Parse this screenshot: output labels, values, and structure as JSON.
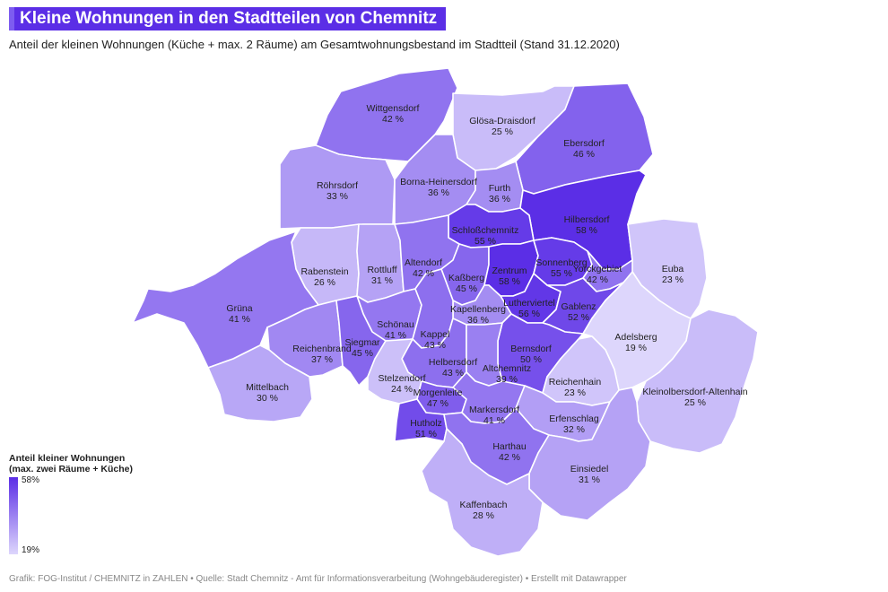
{
  "header": {
    "title": "Kleine Wohnungen in den Stadtteilen von Chemnitz",
    "subtitle": "Anteil der kleinen Wohnungen (Küche + max. 2 Räume) am Gesamtwohnungsbestand im Stadtteil (Stand 31.12.2020)"
  },
  "legend": {
    "title_line1": "Anteil kleiner Wohnungen",
    "title_line2": "(max. zwei Räume + Küche)",
    "max_label": "58%",
    "min_label": "19%",
    "max_value": 58,
    "min_value": 19,
    "color_max": "#5b2ee6",
    "color_min": "#ddd6fc"
  },
  "footer": "Grafik: FOG-Institut / CHEMNITZ in ZAHLEN • Quelle: Stadt Chemnitz - Amt für Informationsverarbeitung (Wohngebäuderegister) • Erstellt mit Datawrapper",
  "districts": [
    {
      "name": "Wittgensdorf",
      "value": 42,
      "value_label": "42 %"
    },
    {
      "name": "Glösa-Draisdorf",
      "value": 25,
      "value_label": "25 %"
    },
    {
      "name": "Ebersdorf",
      "value": 46,
      "value_label": "46 %"
    },
    {
      "name": "Röhrsdorf",
      "value": 33,
      "value_label": "33 %"
    },
    {
      "name": "Borna-Heinersdorf",
      "value": 36,
      "value_label": "36 %"
    },
    {
      "name": "Furth",
      "value": 36,
      "value_label": "36 %"
    },
    {
      "name": "Hilbersdorf",
      "value": 58,
      "value_label": "58 %"
    },
    {
      "name": "Schloßchemnitz",
      "value": 55,
      "value_label": "55 %"
    },
    {
      "name": "Rabenstein",
      "value": 26,
      "value_label": "26 %"
    },
    {
      "name": "Rottluff",
      "value": 31,
      "value_label": "31 %"
    },
    {
      "name": "Altendorf",
      "value": 42,
      "value_label": "42 %"
    },
    {
      "name": "Kaßberg",
      "value": 45,
      "value_label": "45 %"
    },
    {
      "name": "Zentrum",
      "value": 58,
      "value_label": "58 %"
    },
    {
      "name": "Sonnenberg",
      "value": 55,
      "value_label": "55 %"
    },
    {
      "name": "Yorckgebiet",
      "value": 42,
      "value_label": "42 %"
    },
    {
      "name": "Euba",
      "value": 23,
      "value_label": "23 %"
    },
    {
      "name": "Grüna",
      "value": 41,
      "value_label": "41 %"
    },
    {
      "name": "Lutherviertel",
      "value": 56,
      "value_label": "56 %"
    },
    {
      "name": "Gablenz",
      "value": 52,
      "value_label": "52 %"
    },
    {
      "name": "Kapellenberg",
      "value": 36,
      "value_label": "36 %"
    },
    {
      "name": "Schönau",
      "value": 41,
      "value_label": "41 %"
    },
    {
      "name": "Adelsberg",
      "value": 19,
      "value_label": "19 %"
    },
    {
      "name": "Kappel",
      "value": 43,
      "value_label": "43 %"
    },
    {
      "name": "Reichenbrand",
      "value": 37,
      "value_label": "37 %"
    },
    {
      "name": "Siegmar",
      "value": 45,
      "value_label": "45 %"
    },
    {
      "name": "Bernsdorf",
      "value": 50,
      "value_label": "50 %"
    },
    {
      "name": "Helbersdorf",
      "value": 43,
      "value_label": "43 %"
    },
    {
      "name": "Altchemnitz",
      "value": 39,
      "value_label": "39 %"
    },
    {
      "name": "Stelzendorf",
      "value": 24,
      "value_label": "24 %"
    },
    {
      "name": "Reichenhain",
      "value": 23,
      "value_label": "23 %"
    },
    {
      "name": "Mittelbach",
      "value": 30,
      "value_label": "30 %"
    },
    {
      "name": "Kleinolbersdorf-Altenhain",
      "value": 25,
      "value_label": "25 %"
    },
    {
      "name": "Morgenleite",
      "value": 47,
      "value_label": "47 %"
    },
    {
      "name": "Markersdorf",
      "value": 41,
      "value_label": "41 %"
    },
    {
      "name": "Erfenschlag",
      "value": 32,
      "value_label": "32 %"
    },
    {
      "name": "Hutholz",
      "value": 51,
      "value_label": "51 %"
    },
    {
      "name": "Harthau",
      "value": 42,
      "value_label": "42 %"
    },
    {
      "name": "Einsiedel",
      "value": 31,
      "value_label": "31 %"
    },
    {
      "name": "Kaffenbach",
      "value": 28,
      "value_label": "28 %"
    }
  ]
}
